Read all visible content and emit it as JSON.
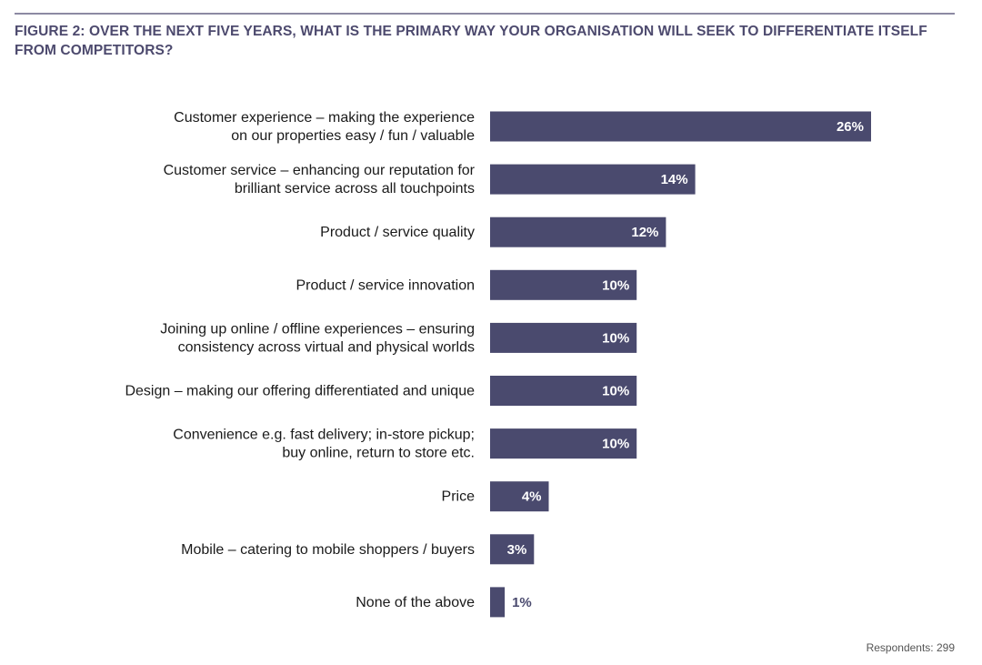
{
  "figure": {
    "title": "FIGURE 2: OVER THE NEXT FIVE YEARS, WHAT IS THE PRIMARY WAY YOUR ORGANISATION WILL SEEK TO DIFFERENTIATE ITSELF FROM COMPETITORS?",
    "respondents": "Respondents: 299"
  },
  "colors": {
    "bar": "#4a4a6e",
    "title": "#4d4a6e",
    "value_inside": "#ffffff",
    "value_outside": "#4a4a6e",
    "rule": "#8c8aa3"
  },
  "chart_data": {
    "type": "bar",
    "orientation": "horizontal",
    "title": "FIGURE 2: OVER THE NEXT FIVE YEARS, WHAT IS THE PRIMARY WAY YOUR ORGANISATION WILL SEEK TO DIFFERENTIATE ITSELF FROM COMPETITORS?",
    "xlabel": "",
    "ylabel": "",
    "unit": "%",
    "grid": false,
    "legend": "none",
    "categories": [
      [
        "Customer experience – making the experience",
        "on our properties easy / fun / valuable"
      ],
      [
        "Customer service – enhancing our reputation for",
        "brilliant service across all touchpoints"
      ],
      [
        "Product / service quality"
      ],
      [
        "Product / service innovation"
      ],
      [
        "Joining up online / offline experiences – ensuring",
        "consistency across virtual and physical worlds"
      ],
      [
        "Design – making our offering differentiated and unique"
      ],
      [
        "Convenience e.g. fast delivery; in-store pickup;",
        "buy online, return to store etc."
      ],
      [
        "Price"
      ],
      [
        "Mobile – catering to mobile shoppers / buyers"
      ],
      [
        "None of the above"
      ]
    ],
    "values": [
      26,
      14,
      12,
      10,
      10,
      10,
      10,
      4,
      3,
      1
    ],
    "value_labels": [
      "26%",
      "14%",
      "12%",
      "10%",
      "10%",
      "10%",
      "10%",
      "4%",
      "3%",
      "1%"
    ],
    "xlim": [
      0,
      26
    ],
    "source_note": "Respondents: 299"
  }
}
